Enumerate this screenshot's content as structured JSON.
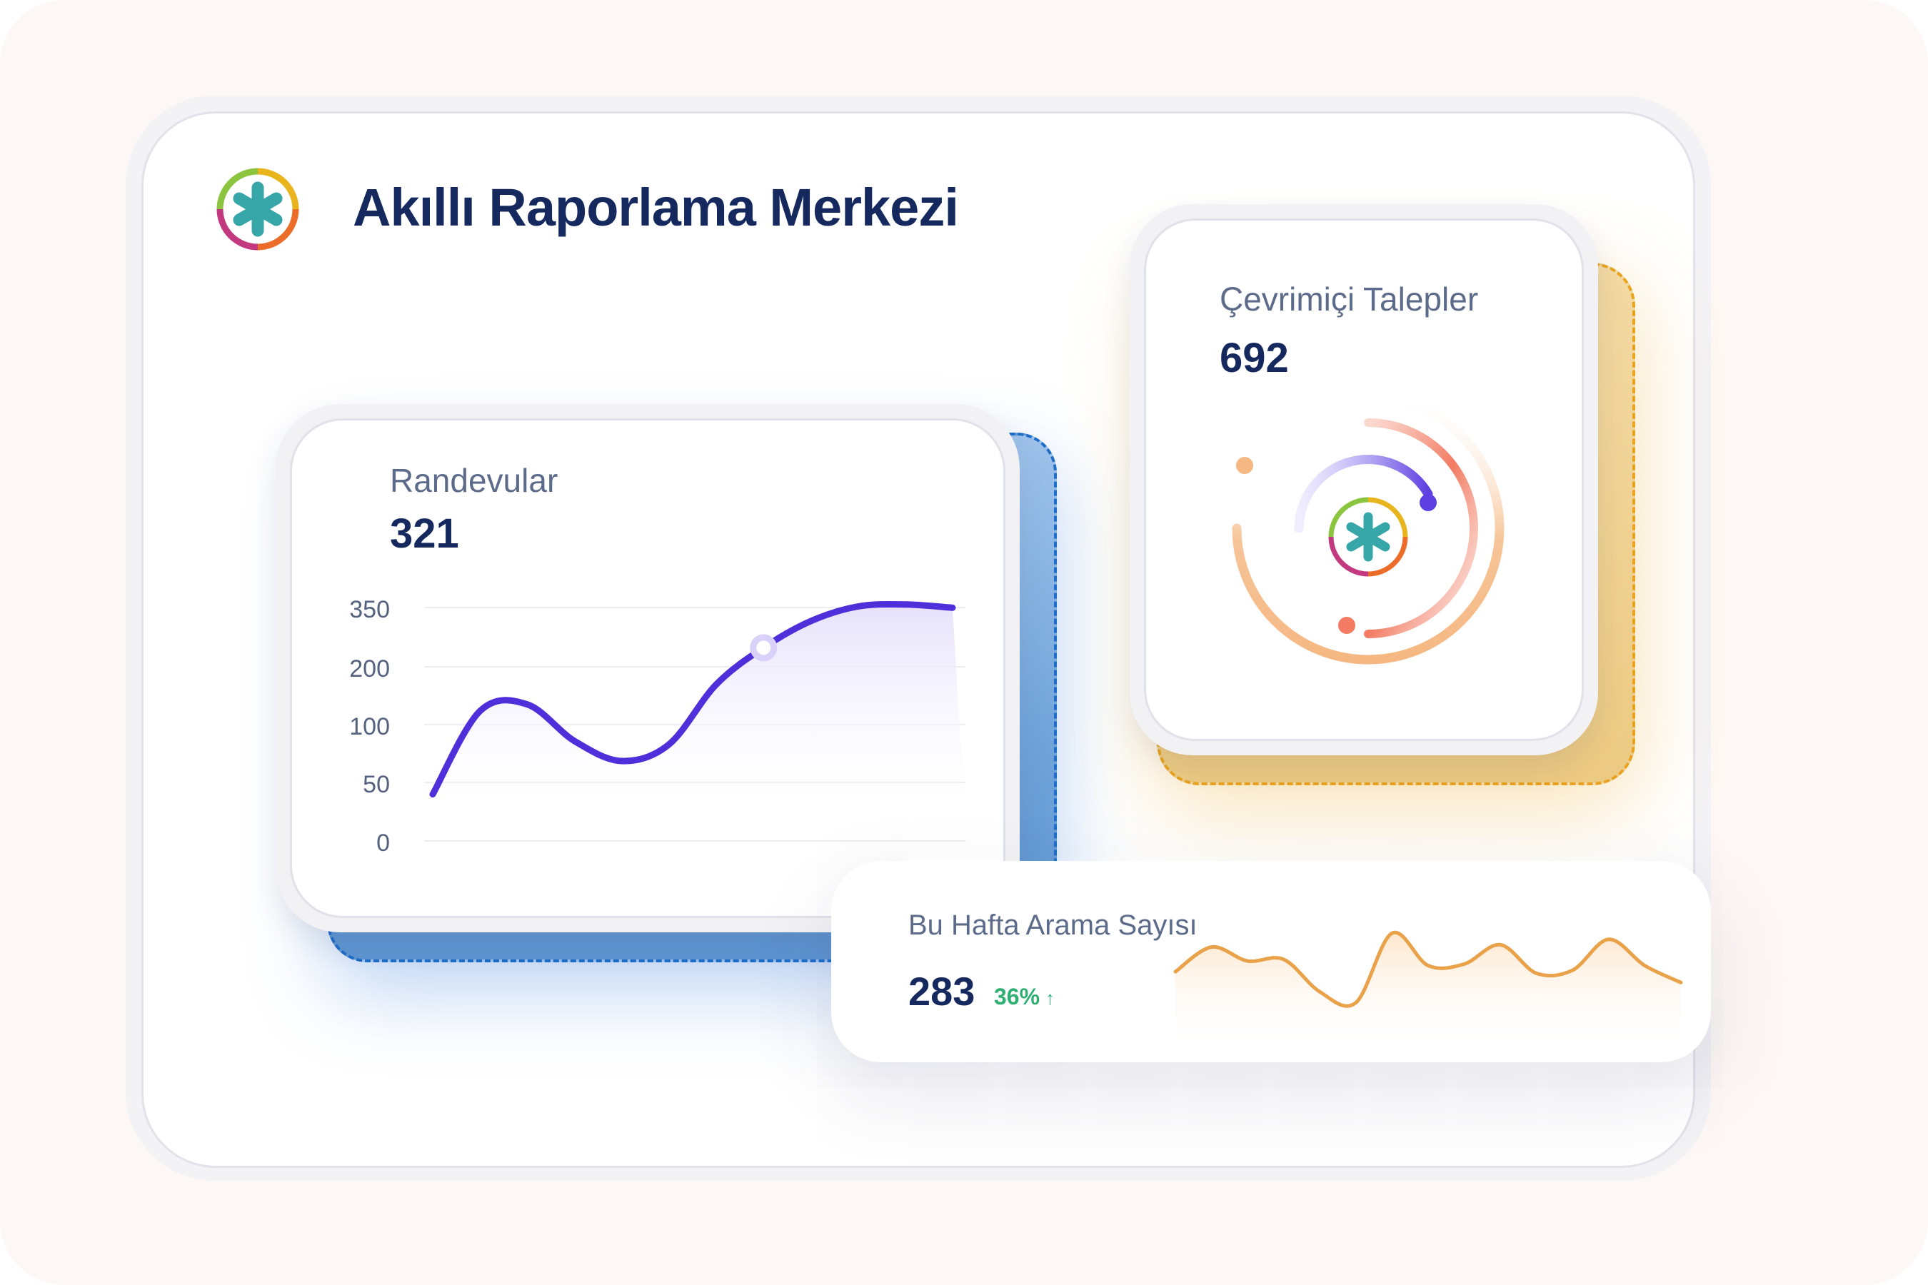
{
  "app": {
    "title": "Akıllı Raporlama Merkezi",
    "logo_icon": "asterisk-logo-icon",
    "brand_colors": [
      "#8bc53f",
      "#e9b51f",
      "#ec6d2a",
      "#c2397f",
      "#37a6a8"
    ]
  },
  "appointments": {
    "label": "Randevular",
    "value": "321",
    "chart_data": {
      "type": "line",
      "y_ticks": [
        "350",
        "200",
        "100",
        "50",
        "0"
      ],
      "series": [
        {
          "values": [
            70,
            195,
            205,
            150,
            120,
            145,
            235,
            290,
            330,
            352,
            355,
            350
          ]
        }
      ],
      "highlight_index": 7,
      "line_color": "#4e2fd9",
      "fill_color": "#e6e1fb"
    }
  },
  "online_requests": {
    "label": "Çevrimiçi Talepler",
    "value": "692",
    "icon": "orbit-progress-icon",
    "colors": {
      "outer": "#f5b882",
      "middle": "#f27b62",
      "inner": "#5b3fe0"
    }
  },
  "weekly_calls": {
    "label": "Bu Hafta Arama Sayısı",
    "value": "283",
    "change": "36%",
    "change_icon": "arrow-up-icon",
    "chart_data": {
      "type": "line",
      "values": [
        10,
        42,
        24,
        26,
        -16,
        -30,
        60,
        18,
        20,
        45,
        8,
        12,
        52,
        18,
        -4
      ]
    },
    "line_color": "#e9a24a"
  }
}
